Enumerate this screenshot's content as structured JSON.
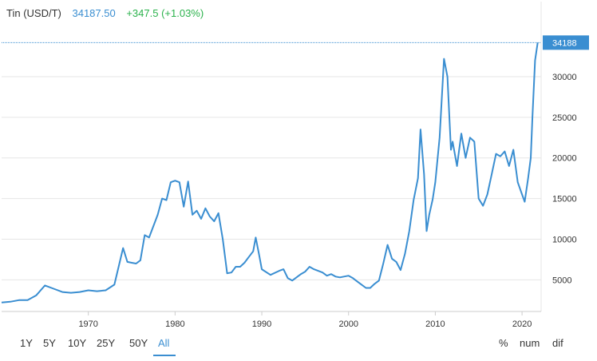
{
  "header": {
    "title": "Tin (USD/T)",
    "price": "34187.50",
    "change": "+347.5 (+1.03%)"
  },
  "colors": {
    "line": "#3a8ed1",
    "grid": "#e6e6e6",
    "axis_text": "#333333",
    "change": "#2bb24c",
    "last_price_bg": "#3a8ed1"
  },
  "range_buttons": [
    {
      "label": "1Y",
      "active": false
    },
    {
      "label": "5Y",
      "active": false
    },
    {
      "label": "10Y",
      "active": false
    },
    {
      "label": "25Y",
      "active": false
    },
    {
      "label": "50Y",
      "active": false
    },
    {
      "label": "All",
      "active": true
    }
  ],
  "options": [
    "%",
    "num",
    "dif"
  ],
  "chart_data": {
    "type": "line",
    "title": "",
    "xlabel": "",
    "ylabel": "",
    "xlim": [
      1960,
      2022.2
    ],
    "ylim": [
      1100,
      35500
    ],
    "x_ticks": [
      1970,
      1980,
      1990,
      2000,
      2010,
      2020
    ],
    "y_ticks": [
      5000,
      10000,
      15000,
      20000,
      25000,
      30000
    ],
    "y_axis_position": "right",
    "grid": "horizontal",
    "last_value_label": "34188",
    "last_value": 34188,
    "series": [
      {
        "name": "",
        "points": [
          [
            1960.0,
            2200
          ],
          [
            1961.0,
            2300
          ],
          [
            1962.0,
            2500
          ],
          [
            1963.0,
            2500
          ],
          [
            1964.0,
            3100
          ],
          [
            1965.0,
            4300
          ],
          [
            1966.0,
            3900
          ],
          [
            1967.0,
            3500
          ],
          [
            1968.0,
            3400
          ],
          [
            1969.0,
            3500
          ],
          [
            1970.0,
            3700
          ],
          [
            1971.0,
            3600
          ],
          [
            1972.0,
            3700
          ],
          [
            1973.0,
            4400
          ],
          [
            1974.0,
            8900
          ],
          [
            1974.5,
            7200
          ],
          [
            1975.0,
            7100
          ],
          [
            1975.5,
            7000
          ],
          [
            1976.0,
            7400
          ],
          [
            1976.5,
            10500
          ],
          [
            1977.0,
            10200
          ],
          [
            1978.0,
            13000
          ],
          [
            1978.5,
            15000
          ],
          [
            1979.0,
            14800
          ],
          [
            1979.5,
            17000
          ],
          [
            1980.0,
            17200
          ],
          [
            1980.5,
            17000
          ],
          [
            1981.0,
            14000
          ],
          [
            1981.5,
            17100
          ],
          [
            1982.0,
            13000
          ],
          [
            1982.5,
            13500
          ],
          [
            1983.0,
            12500
          ],
          [
            1983.5,
            13800
          ],
          [
            1984.0,
            12800
          ],
          [
            1984.5,
            12200
          ],
          [
            1985.0,
            13200
          ],
          [
            1985.5,
            10000
          ],
          [
            1986.0,
            5800
          ],
          [
            1986.5,
            5900
          ],
          [
            1987.0,
            6600
          ],
          [
            1987.5,
            6600
          ],
          [
            1988.0,
            7100
          ],
          [
            1988.5,
            7800
          ],
          [
            1989.0,
            8500
          ],
          [
            1989.3,
            10200
          ],
          [
            1989.7,
            8000
          ],
          [
            1990.0,
            6300
          ],
          [
            1991.0,
            5600
          ],
          [
            1992.0,
            6100
          ],
          [
            1992.5,
            6300
          ],
          [
            1993.0,
            5200
          ],
          [
            1993.5,
            4900
          ],
          [
            1994.0,
            5300
          ],
          [
            1994.5,
            5700
          ],
          [
            1995.0,
            6000
          ],
          [
            1995.5,
            6600
          ],
          [
            1996.0,
            6300
          ],
          [
            1997.0,
            5900
          ],
          [
            1997.5,
            5500
          ],
          [
            1998.0,
            5700
          ],
          [
            1998.5,
            5400
          ],
          [
            1999.0,
            5300
          ],
          [
            2000.0,
            5500
          ],
          [
            2000.5,
            5200
          ],
          [
            2001.0,
            4800
          ],
          [
            2001.5,
            4400
          ],
          [
            2002.0,
            4000
          ],
          [
            2002.5,
            4000
          ],
          [
            2003.0,
            4500
          ],
          [
            2003.5,
            4900
          ],
          [
            2004.0,
            7000
          ],
          [
            2004.5,
            9300
          ],
          [
            2005.0,
            7600
          ],
          [
            2005.5,
            7200
          ],
          [
            2006.0,
            6200
          ],
          [
            2006.5,
            8200
          ],
          [
            2007.0,
            11000
          ],
          [
            2007.5,
            14800
          ],
          [
            2008.0,
            17500
          ],
          [
            2008.3,
            23500
          ],
          [
            2008.7,
            18000
          ],
          [
            2009.0,
            11000
          ],
          [
            2009.3,
            13000
          ],
          [
            2009.7,
            14900
          ],
          [
            2010.0,
            17000
          ],
          [
            2010.5,
            22500
          ],
          [
            2011.0,
            32200
          ],
          [
            2011.4,
            30000
          ],
          [
            2011.8,
            21000
          ],
          [
            2012.0,
            22000
          ],
          [
            2012.5,
            19000
          ],
          [
            2013.0,
            23000
          ],
          [
            2013.5,
            20000
          ],
          [
            2014.0,
            22500
          ],
          [
            2014.5,
            22000
          ],
          [
            2015.0,
            15000
          ],
          [
            2015.5,
            14100
          ],
          [
            2016.0,
            15500
          ],
          [
            2016.5,
            18000
          ],
          [
            2017.0,
            20500
          ],
          [
            2017.5,
            20200
          ],
          [
            2018.0,
            20800
          ],
          [
            2018.5,
            19000
          ],
          [
            2019.0,
            21000
          ],
          [
            2019.5,
            17000
          ],
          [
            2020.0,
            15500
          ],
          [
            2020.3,
            14600
          ],
          [
            2020.7,
            17500
          ],
          [
            2021.0,
            20000
          ],
          [
            2021.2,
            25000
          ],
          [
            2021.5,
            32000
          ],
          [
            2021.8,
            34188
          ]
        ]
      }
    ]
  }
}
